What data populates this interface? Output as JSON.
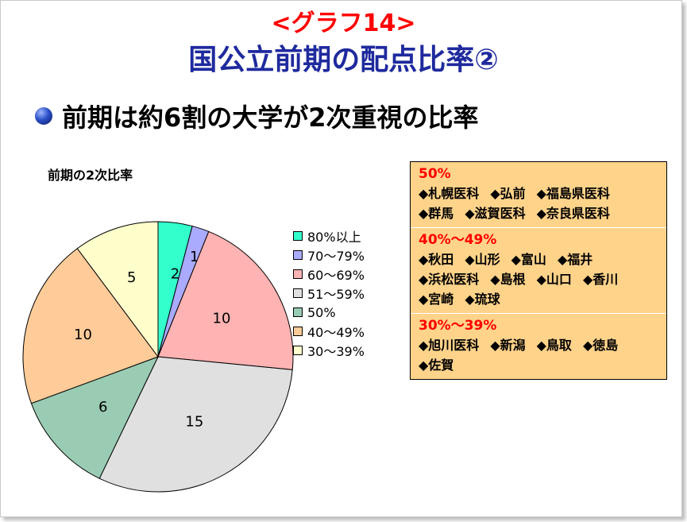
{
  "slide": {
    "title_top": "<グラフ14>",
    "title_main": "国公立前期の配点比率②",
    "bullet": "前期は約6割の大学が2次重視の比率"
  },
  "chart_data": {
    "type": "pie",
    "title": "前期の2次比率",
    "categories": [
      "80%以上",
      "70～79%",
      "60～69%",
      "51～59%",
      "50%",
      "40～49%",
      "30～39%"
    ],
    "values": [
      2,
      1,
      10,
      15,
      6,
      10,
      5
    ],
    "colors": [
      "#33ffcc",
      "#aaaaff",
      "#ffb3b3",
      "#e0e0e0",
      "#99ccb3",
      "#ffcc99",
      "#ffffcc"
    ],
    "data_labels": [
      "2",
      "1",
      "10",
      "15",
      "6",
      "10",
      "5"
    ],
    "legend_position": "right"
  },
  "info": {
    "sections": [
      {
        "heading": "50%",
        "items": [
          "◆札幌医科",
          "◆弘前",
          "◆福島県医科",
          "◆群馬",
          "◆滋賀医科",
          "◆奈良県医科"
        ]
      },
      {
        "heading": "40%～49%",
        "items": [
          "◆秋田",
          "◆山形",
          "◆富山",
          "◆福井",
          "◆浜松医科",
          "◆島根",
          "◆山口",
          "◆香川",
          "◆宮崎",
          "◆琉球"
        ]
      },
      {
        "heading": "30%～39%",
        "items": [
          "◆旭川医科",
          "◆新潟",
          "◆鳥取",
          "◆徳島",
          "◆佐賀"
        ]
      }
    ]
  },
  "colors": {
    "title_top": "#ff0000",
    "title_main": "#1f2a9e",
    "info_box_bg": "#ffd38a",
    "info_heading": "#ff0000"
  }
}
